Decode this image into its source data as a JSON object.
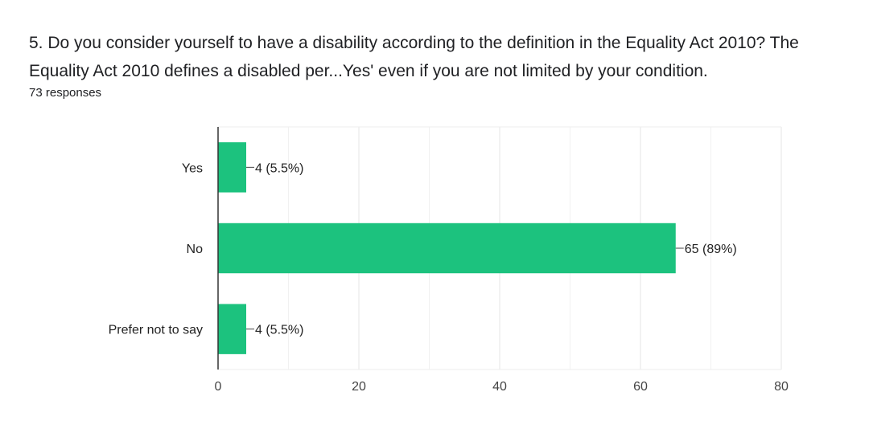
{
  "question": {
    "title": "5. Do you consider yourself to have a disability according to the definition in the Equality Act 2010?   The Equality Act 2010 defines a disabled per...Yes' even if you are not limited by your condition.",
    "responses": "73 responses"
  },
  "colors": {
    "bar": "#1cc27e",
    "grid": "#e6e6e6",
    "axis": "#333333"
  },
  "chart_data": {
    "type": "bar",
    "orientation": "horizontal",
    "categories": [
      "Yes",
      "No",
      "Prefer not to say"
    ],
    "values": [
      4,
      65,
      4
    ],
    "data_labels": [
      "4 (5.5%)",
      "65 (89%)",
      "4 (5.5%)"
    ],
    "xlim": [
      0,
      80
    ],
    "xticks": [
      0,
      20,
      40,
      60,
      80
    ],
    "grid": true,
    "title": "",
    "xlabel": "",
    "ylabel": ""
  }
}
